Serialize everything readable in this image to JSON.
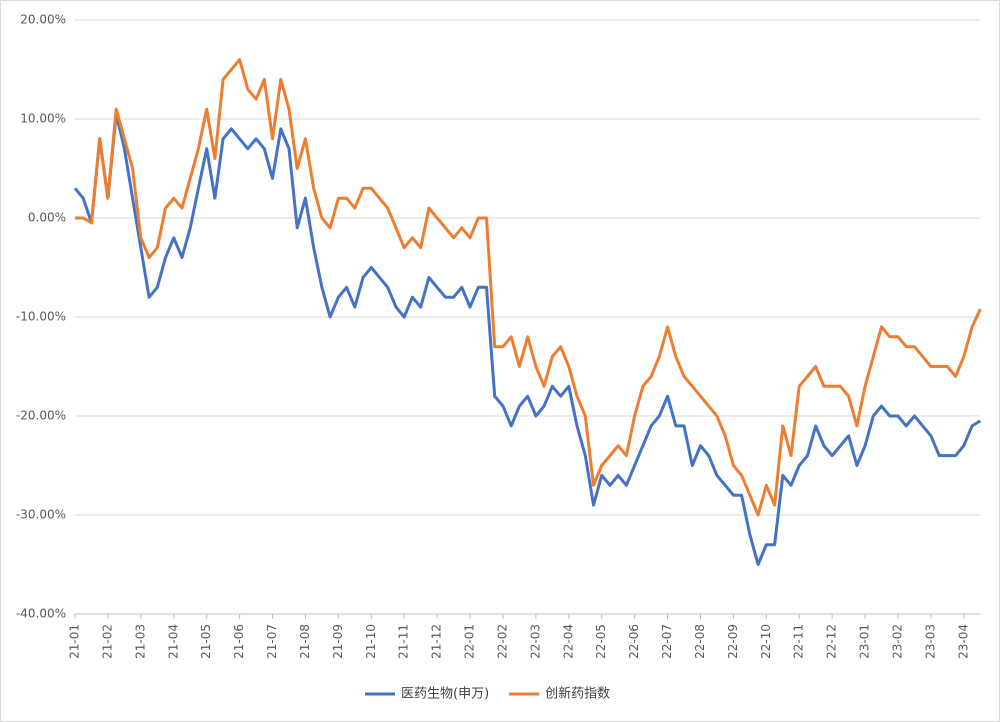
{
  "chart_data": {
    "type": "line",
    "categories": [
      "21-01",
      null,
      null,
      null,
      "21-02",
      null,
      null,
      null,
      "21-03",
      null,
      null,
      null,
      "21-04",
      null,
      null,
      null,
      "21-05",
      null,
      null,
      null,
      "21-06",
      null,
      null,
      null,
      "21-07",
      null,
      null,
      null,
      "21-08",
      null,
      null,
      null,
      "21-09",
      null,
      null,
      null,
      "21-10",
      null,
      null,
      null,
      "21-11",
      null,
      null,
      null,
      "21-12",
      null,
      null,
      null,
      "22-01",
      null,
      null,
      null,
      "22-02",
      null,
      null,
      null,
      "22-03",
      null,
      null,
      null,
      "22-04",
      null,
      null,
      null,
      "22-05",
      null,
      null,
      null,
      "22-06",
      null,
      null,
      null,
      "22-07",
      null,
      null,
      null,
      "22-08",
      null,
      null,
      null,
      "22-09",
      null,
      null,
      null,
      "22-10",
      null,
      null,
      null,
      "22-11",
      null,
      null,
      null,
      "22-12",
      null,
      null,
      null,
      "23-01",
      null,
      null,
      null,
      "23-02",
      null,
      null,
      null,
      "23-03",
      null,
      null,
      null,
      "23-04",
      null,
      null
    ],
    "series": [
      {
        "name": "医药生物(申万)",
        "color": "#4472c4",
        "values": [
          3,
          2,
          -0.5,
          8,
          2,
          10.5,
          7,
          2,
          -3,
          -8,
          -7,
          -4,
          -2,
          -4,
          -1,
          3,
          7,
          2,
          8,
          9,
          8,
          7,
          8,
          7,
          4,
          9,
          7,
          -1,
          2,
          -3,
          -7,
          -10,
          -8,
          -7,
          -9,
          -6,
          -5,
          -6,
          -7,
          -9,
          -10,
          -8,
          -9,
          -6,
          -7,
          -8,
          -8,
          -7,
          -9,
          -7,
          -7,
          -18,
          -19,
          -21,
          -19,
          -18,
          -20,
          -19,
          -17,
          -18,
          -17,
          -21,
          -24,
          -29,
          -26,
          -27,
          -26,
          -27,
          -25,
          -23,
          -21,
          -20,
          -18,
          -21,
          -21,
          -25,
          -23,
          -24,
          -26,
          -27,
          -28,
          -28,
          -32,
          -35,
          -33,
          -33,
          -26,
          -27,
          -25,
          -24,
          -21,
          -23,
          -24,
          -23,
          -22,
          -25,
          -23,
          -20,
          -19,
          -20,
          -20,
          -21,
          -20,
          -21,
          -22,
          -24,
          -24,
          -24,
          -23,
          -21,
          -20.5
        ]
      },
      {
        "name": "创新药指数",
        "color": "#ed7d31",
        "values": [
          0,
          0,
          -0.5,
          8,
          2,
          11,
          8,
          5,
          -2,
          -4,
          -3,
          1,
          2,
          1,
          4,
          7,
          11,
          6,
          14,
          15,
          16,
          13,
          12,
          14,
          8,
          14,
          11,
          5,
          8,
          3,
          0,
          -1,
          2,
          2,
          1,
          3,
          3,
          2,
          1,
          -1,
          -3,
          -2,
          -3,
          1,
          0,
          -1,
          -2,
          -1,
          -2,
          0,
          0,
          -13,
          -13,
          -12,
          -15,
          -12,
          -15,
          -17,
          -14,
          -13,
          -15,
          -18,
          -20,
          -27,
          -25,
          -24,
          -23,
          -24,
          -20,
          -17,
          -16,
          -14,
          -11,
          -14,
          -16,
          -17,
          -18,
          -19,
          -20,
          -22,
          -25,
          -26,
          -28,
          -30,
          -27,
          -29,
          -21,
          -24,
          -17,
          -16,
          -15,
          -17,
          -17,
          -17,
          -18,
          -21,
          -17,
          -14,
          -11,
          -12,
          -12,
          -13,
          -13,
          -14,
          -15,
          -15,
          -15,
          -16,
          -14,
          -11,
          -9.2
        ]
      }
    ],
    "ylim": [
      -40,
      20
    ],
    "yticks": [
      {
        "value": -40,
        "label": "-40.00%"
      },
      {
        "value": -30,
        "label": "-30.00%"
      },
      {
        "value": -20,
        "label": "-20.00%"
      },
      {
        "value": -10,
        "label": "-10.00%"
      },
      {
        "value": 0,
        "label": "0.00%"
      },
      {
        "value": 10,
        "label": "10.00%"
      },
      {
        "value": 20,
        "label": "20.00%"
      }
    ],
    "grid": true
  }
}
